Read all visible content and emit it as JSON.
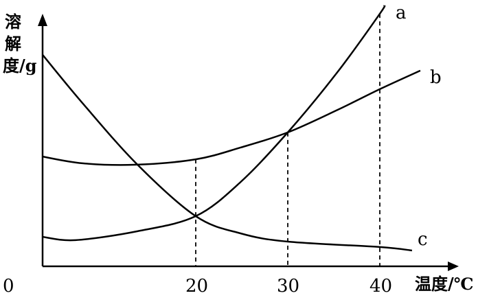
{
  "chart_data": {
    "type": "line",
    "ylabel": "溶解度/g",
    "xlabel": "温度/℃",
    "origin_label": "0",
    "x_ticks": [
      20,
      30,
      40
    ],
    "xlim": [
      0,
      45
    ],
    "ylim": [
      0,
      108
    ],
    "grid": false,
    "reference_lines": [
      20,
      30,
      40
    ],
    "series": [
      {
        "name": "a",
        "x": [
          0,
          4.3,
          12.4,
          20,
          24.9,
          30,
          35.4,
          40,
          40.5
        ],
        "y": [
          11.9,
          10.6,
          14.2,
          20.3,
          34.2,
          54.2,
          78.6,
          102.2,
          105.6
        ]
      },
      {
        "name": "b",
        "x": [
          0,
          5.2,
          12,
          20,
          24.9,
          30,
          35.4,
          40,
          44.4
        ],
        "y": [
          44.4,
          41.7,
          41.1,
          43.3,
          48.1,
          54.2,
          63.3,
          71.7,
          79.2
        ]
      },
      {
        "name": "c",
        "x": [
          0,
          5.2,
          12.4,
          20,
          24.9,
          30,
          40,
          43.5
        ],
        "y": [
          85.6,
          66.1,
          41.1,
          20.3,
          13.3,
          10,
          7.8,
          6.4
        ]
      }
    ],
    "color": "#000000"
  }
}
